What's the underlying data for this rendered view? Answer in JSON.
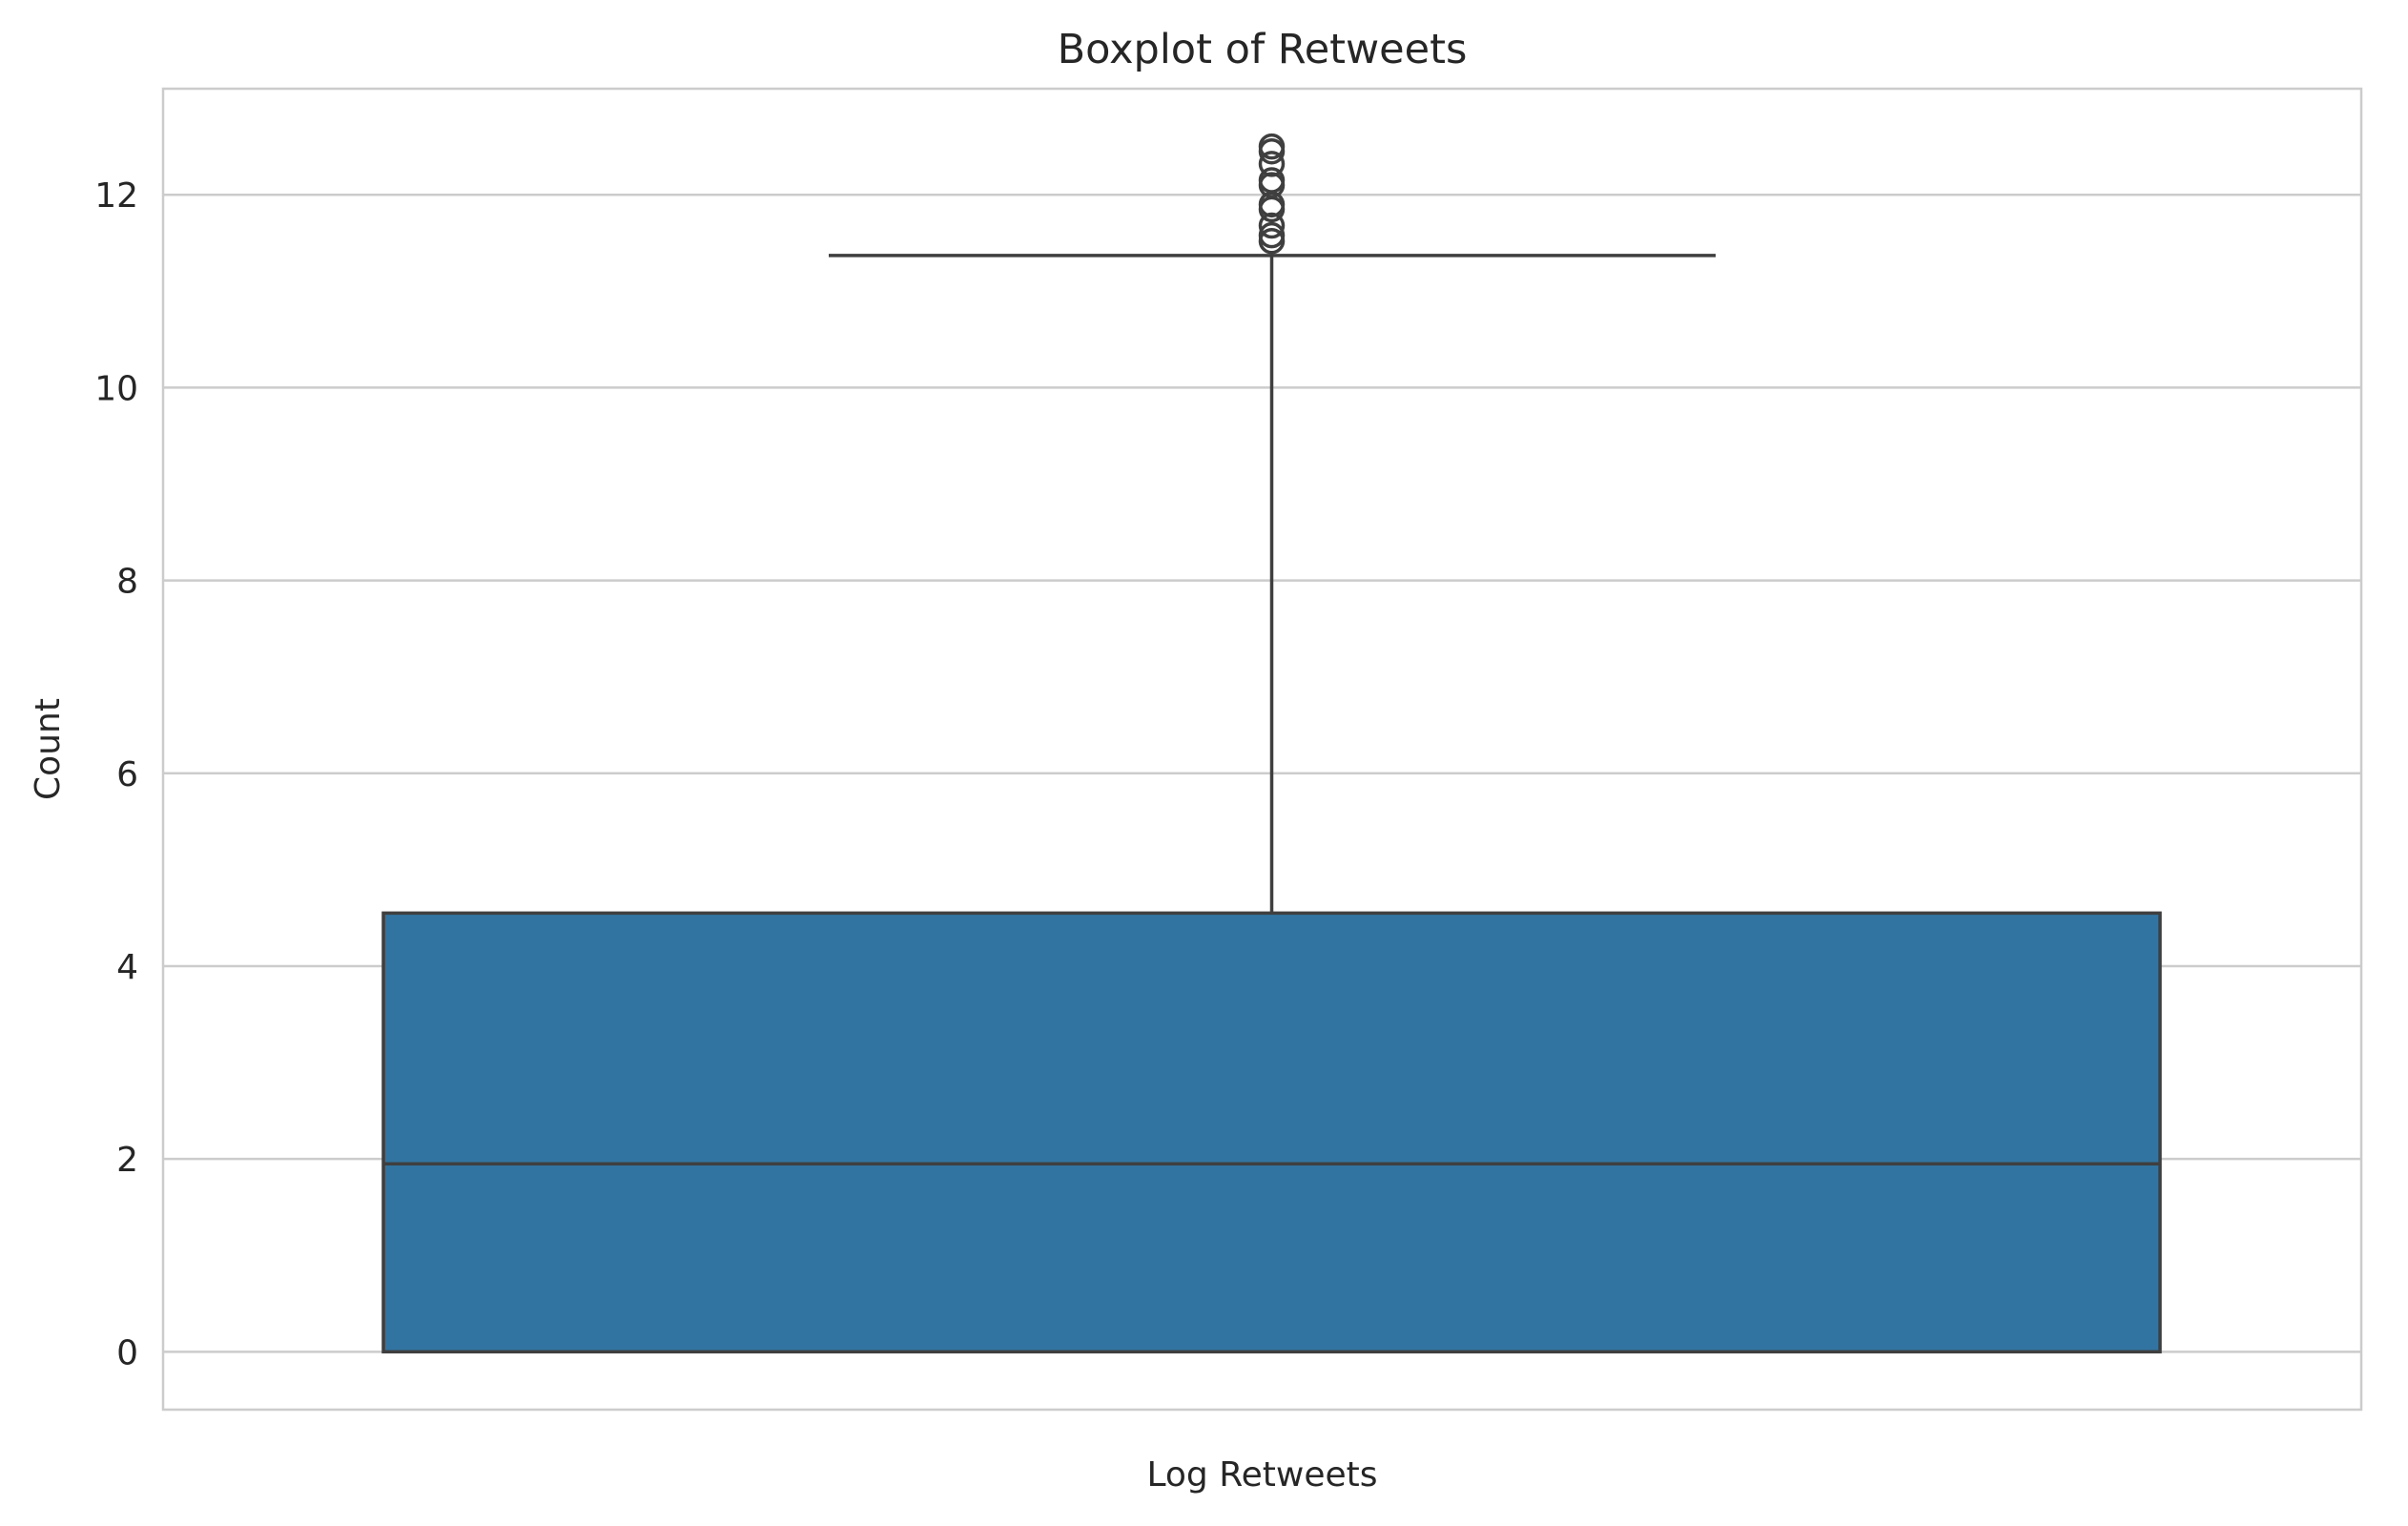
{
  "chart_data": {
    "type": "box",
    "title": "Boxplot of Retweets",
    "xlabel": "Log Retweets",
    "ylabel": "Count",
    "ylim": [
      -0.6,
      13.1
    ],
    "yticks": [
      0,
      2,
      4,
      6,
      8,
      10,
      12
    ],
    "grid": true,
    "box_color": "#3274a1",
    "line_color": "#3f3f3f",
    "grid_color": "#cccccc",
    "box": {
      "min": 0,
      "q1": 0,
      "median": 1.95,
      "q3": 4.55,
      "whisker_high": 11.37,
      "outliers": [
        11.52,
        11.58,
        11.68,
        11.85,
        11.9,
        12.1,
        12.15,
        12.32,
        12.45,
        12.5
      ]
    }
  }
}
